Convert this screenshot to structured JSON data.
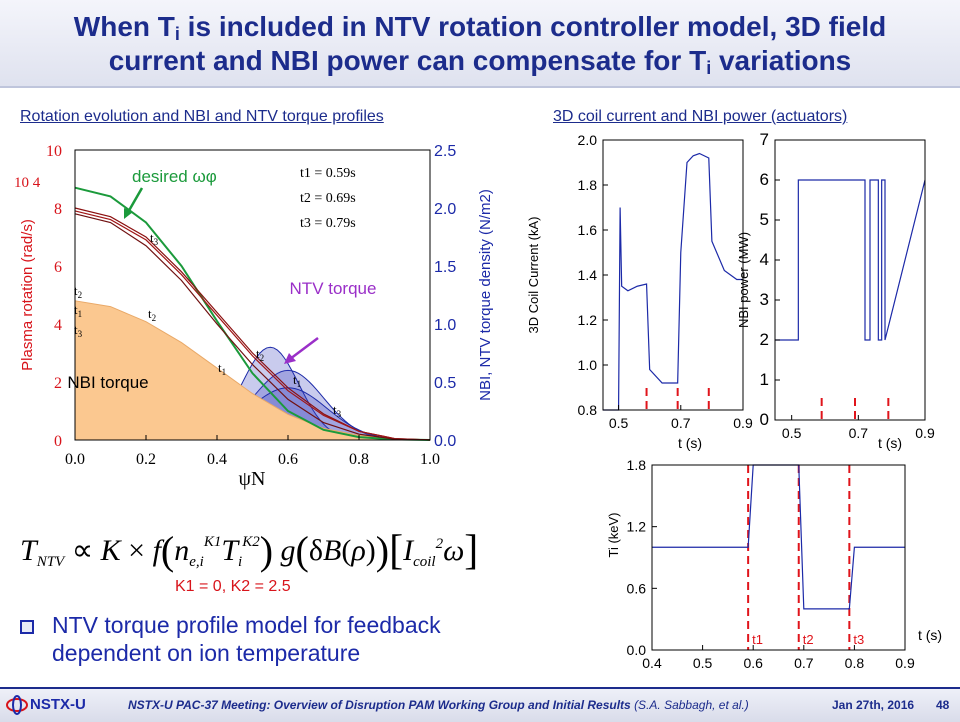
{
  "slide": {
    "title_line1_pre": "When T",
    "title_line1_sub": "i",
    "title_line1_post": " is included in NTV rotation controller model, 3D field",
    "title_line2_pre": "current and NBI power can compensate for T",
    "title_line2_sub": "i",
    "title_line2_post": " variations",
    "left_heading": "Rotation evolution and NBI and NTV torque profiles",
    "right_heading": "3D coil current and NBI power (actuators)",
    "equation_text": "T_NTV ∝ K × f( n_e,i^K1 T_i^K2 ) g( δB(ρ) ) [ I_coil^2 ω ]",
    "k_values": "K1 = 0, K2 = 2.5",
    "bullet_line1": "NTV torque profile model for feedback",
    "bullet_line2": "dependent on ion temperature",
    "page_number": "48",
    "footer_logo": "NSTX-U",
    "footer_text": "NSTX-U PAC-37 Meeting: Overview of Disruption PAM Working Group and Initial Results",
    "footer_authors": "(S.A. Sabbagh, et al.)",
    "footer_date": "Jan 27th, 2016"
  },
  "chart_data": [
    {
      "type": "line",
      "ylabel_left": "Plasma rotation (rad/s)",
      "ylabel_right": "NBI, NTV torque density (N/m2)",
      "xlabel": "ψN",
      "y_multiplier": "10 4",
      "xlim": [
        0.0,
        1.0
      ],
      "ylim_left": [
        0,
        10
      ],
      "ylim_right": [
        0.0,
        2.5
      ],
      "x_ticks": [
        "0.0",
        "0.2",
        "0.4",
        "0.6",
        "0.8",
        "1.0"
      ],
      "y_left_ticks": [
        "0",
        "2",
        "4",
        "6",
        "8",
        "10"
      ],
      "y_right_ticks": [
        "0.0",
        "0.5",
        "1.0",
        "1.5",
        "2.0",
        "2.5"
      ],
      "annotations": [
        "desired ωφ",
        "NTV torque",
        "NBI torque",
        "t1 = 0.59s",
        "t2 = 0.69s",
        "t3 = 0.79s"
      ],
      "series": [
        {
          "name": "desired ωφ",
          "x": [
            0,
            0.1,
            0.2,
            0.3,
            0.4,
            0.5,
            0.6,
            0.7,
            0.8,
            0.9,
            1.0
          ],
          "values": [
            8.7,
            8.4,
            7.5,
            6.0,
            4.1,
            2.3,
            1.0,
            0.35,
            0.1,
            0.02,
            0
          ]
        },
        {
          "name": "t1",
          "x": [
            0,
            0.1,
            0.2,
            0.3,
            0.4,
            0.5,
            0.6,
            0.7,
            0.8,
            0.9,
            1.0
          ],
          "values": [
            8.0,
            7.7,
            7.0,
            5.8,
            4.4,
            3.0,
            1.8,
            0.9,
            0.3,
            0.05,
            0
          ]
        },
        {
          "name": "t2",
          "x": [
            0,
            0.1,
            0.2,
            0.3,
            0.4,
            0.5,
            0.6,
            0.7,
            0.8,
            0.9,
            1.0
          ],
          "values": [
            7.9,
            7.6,
            6.9,
            5.7,
            4.3,
            2.9,
            1.7,
            0.85,
            0.3,
            0.05,
            0
          ]
        },
        {
          "name": "t3",
          "x": [
            0,
            0.1,
            0.2,
            0.3,
            0.4,
            0.5,
            0.6,
            0.7,
            0.8,
            0.9,
            1.0
          ],
          "values": [
            7.8,
            7.5,
            6.7,
            5.5,
            4.0,
            2.6,
            1.4,
            0.6,
            0.2,
            0.03,
            0
          ]
        }
      ],
      "nbi_torque": {
        "x": [
          0,
          0.1,
          0.2,
          0.3,
          0.4,
          0.5,
          0.6,
          0.7,
          0.8,
          0.9,
          1.0
        ],
        "values": [
          1.2,
          1.15,
          1.02,
          0.84,
          0.62,
          0.4,
          0.22,
          0.1,
          0.04,
          0.01,
          0
        ]
      },
      "ntv_torque": [
        {
          "name": "t1",
          "peak_x": 0.6,
          "peak": 0.6,
          "width": 0.1
        },
        {
          "name": "t2",
          "peak_x": 0.55,
          "peak": 0.8,
          "width": 0.08
        },
        {
          "name": "t3",
          "peak_x": 0.6,
          "peak": 0.45,
          "width": 0.11
        }
      ]
    },
    {
      "type": "line",
      "ylabel": "3D Coil Current (kA)",
      "xlabel": "t (s)",
      "xlim": [
        0.45,
        0.9
      ],
      "ylim": [
        0.8,
        2.0
      ],
      "x_ticks": [
        "0.5",
        "0.7",
        "0.9"
      ],
      "y_ticks": [
        "0.8",
        "1.0",
        "1.2",
        "1.4",
        "1.6",
        "1.8",
        "2.0"
      ],
      "series": [
        {
          "name": "",
          "x": [
            0.45,
            0.5,
            0.505,
            0.51,
            0.53,
            0.56,
            0.59,
            0.6,
            0.64,
            0.66,
            0.69,
            0.7,
            0.72,
            0.74,
            0.76,
            0.79,
            0.8,
            0.84,
            0.88,
            0.9
          ],
          "values": [
            0.8,
            0.8,
            1.7,
            1.35,
            1.33,
            1.35,
            1.36,
            0.98,
            0.92,
            0.92,
            0.92,
            1.5,
            1.9,
            1.93,
            1.94,
            1.92,
            1.55,
            1.42,
            1.38,
            1.38
          ]
        }
      ],
      "marker_times": [
        0.59,
        0.69,
        0.79
      ]
    },
    {
      "type": "line",
      "ylabel": "NBI power (MW)",
      "xlabel": "t (s)",
      "xlim": [
        0.45,
        0.9
      ],
      "ylim": [
        0,
        7
      ],
      "x_ticks": [
        "0.5",
        "0.7",
        "0.9"
      ],
      "y_ticks": [
        "0",
        "1",
        "2",
        "3",
        "4",
        "5",
        "6",
        "7"
      ],
      "series": [
        {
          "name": "",
          "x": [
            0.45,
            0.52,
            0.52,
            0.72,
            0.72,
            0.735,
            0.735,
            0.76,
            0.76,
            0.77,
            0.77,
            0.78,
            0.78,
            0.9
          ],
          "values": [
            2,
            2,
            6,
            6,
            2,
            2,
            6,
            6,
            2,
            2,
            6,
            6,
            2,
            6
          ]
        }
      ],
      "marker_times": [
        0.59,
        0.69,
        0.79
      ]
    },
    {
      "type": "line",
      "ylabel": "Ti (keV)",
      "xlabel": "t (s)",
      "xlim": [
        0.4,
        0.9
      ],
      "ylim": [
        0.0,
        1.8
      ],
      "x_ticks": [
        "0.4",
        "0.5",
        "0.6",
        "0.7",
        "0.8",
        "0.9"
      ],
      "y_ticks": [
        "0.0",
        "0.6",
        "1.2",
        "1.8"
      ],
      "series": [
        {
          "name": "",
          "x": [
            0.4,
            0.59,
            0.6,
            0.69,
            0.7,
            0.79,
            0.8,
            0.9
          ],
          "values": [
            1.0,
            1.0,
            1.8,
            1.8,
            0.4,
            0.4,
            1.0,
            1.0
          ]
        }
      ],
      "marker_labels": [
        "t1",
        "t2",
        "t3"
      ],
      "marker_times": [
        0.59,
        0.69,
        0.79
      ]
    }
  ]
}
